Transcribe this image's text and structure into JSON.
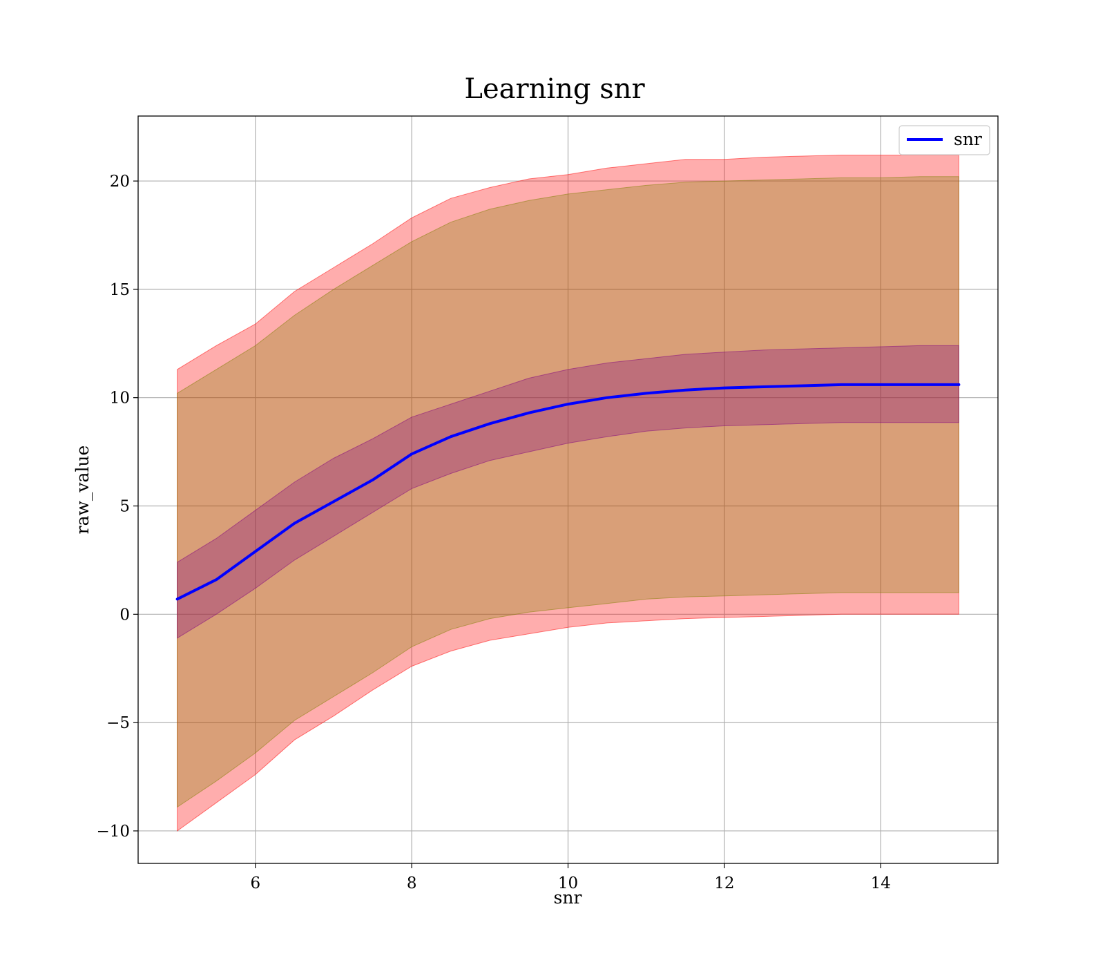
{
  "chart_data": {
    "type": "area",
    "title": "Learning snr",
    "xlabel": "snr",
    "ylabel": "raw_value",
    "xlim": [
      4.5,
      15.5
    ],
    "ylim": [
      -11.5,
      23
    ],
    "xticks": [
      6,
      8,
      10,
      12,
      14
    ],
    "yticks": [
      -10,
      -5,
      0,
      5,
      10,
      15,
      20
    ],
    "xtick_labels": [
      "6",
      "8",
      "10",
      "12",
      "14"
    ],
    "ytick_labels": [
      "−10",
      "−5",
      "0",
      "5",
      "10",
      "15",
      "20"
    ],
    "grid": true,
    "legend": {
      "position": "top-right",
      "entries": [
        "snr"
      ]
    },
    "x": [
      5.0,
      5.5,
      6.0,
      6.5,
      7.0,
      7.5,
      8.0,
      8.5,
      9.0,
      9.5,
      10.0,
      10.5,
      11.0,
      11.5,
      12.0,
      12.5,
      13.0,
      13.5,
      14.0,
      14.5,
      15.0
    ],
    "series": [
      {
        "name": "snr",
        "color": "#0000ff",
        "values": [
          0.7,
          1.6,
          2.9,
          4.2,
          5.2,
          6.2,
          7.4,
          8.2,
          8.8,
          9.3,
          9.7,
          10.0,
          10.2,
          10.35,
          10.45,
          10.5,
          10.55,
          10.6,
          10.6,
          10.6,
          10.6
        ]
      }
    ],
    "bands": [
      {
        "color": "#ff0000",
        "opacity": 0.32,
        "lower": [
          -10.0,
          -8.7,
          -7.4,
          -5.8,
          -4.7,
          -3.5,
          -2.4,
          -1.7,
          -1.2,
          -0.9,
          -0.6,
          -0.4,
          -0.3,
          -0.2,
          -0.15,
          -0.1,
          -0.05,
          0.0,
          0.0,
          0.0,
          0.0
        ],
        "upper": [
          11.3,
          12.4,
          13.4,
          14.9,
          16.0,
          17.1,
          18.3,
          19.2,
          19.7,
          20.1,
          20.3,
          20.6,
          20.8,
          21.0,
          21.0,
          21.1,
          21.15,
          21.2,
          21.2,
          21.2,
          21.2
        ]
      },
      {
        "color": "#808000",
        "opacity": 0.3,
        "lower": [
          -8.9,
          -7.7,
          -6.4,
          -4.9,
          -3.8,
          -2.7,
          -1.5,
          -0.7,
          -0.2,
          0.1,
          0.3,
          0.5,
          0.7,
          0.8,
          0.85,
          0.9,
          0.95,
          1.0,
          1.0,
          1.0,
          1.0
        ],
        "upper": [
          10.2,
          11.3,
          12.4,
          13.8,
          15.0,
          16.1,
          17.2,
          18.1,
          18.7,
          19.1,
          19.4,
          19.6,
          19.8,
          19.95,
          20.0,
          20.05,
          20.1,
          20.15,
          20.15,
          20.2,
          20.2
        ]
      },
      {
        "color": "#800080",
        "opacity": 0.3,
        "lower": [
          -1.1,
          0.0,
          1.2,
          2.5,
          3.6,
          4.7,
          5.8,
          6.5,
          7.1,
          7.5,
          7.9,
          8.2,
          8.45,
          8.6,
          8.7,
          8.75,
          8.8,
          8.85,
          8.85,
          8.85,
          8.85
        ],
        "upper": [
          2.4,
          3.5,
          4.8,
          6.1,
          7.2,
          8.1,
          9.1,
          9.7,
          10.3,
          10.9,
          11.3,
          11.6,
          11.8,
          12.0,
          12.1,
          12.2,
          12.25,
          12.3,
          12.35,
          12.4,
          12.4
        ]
      }
    ]
  }
}
